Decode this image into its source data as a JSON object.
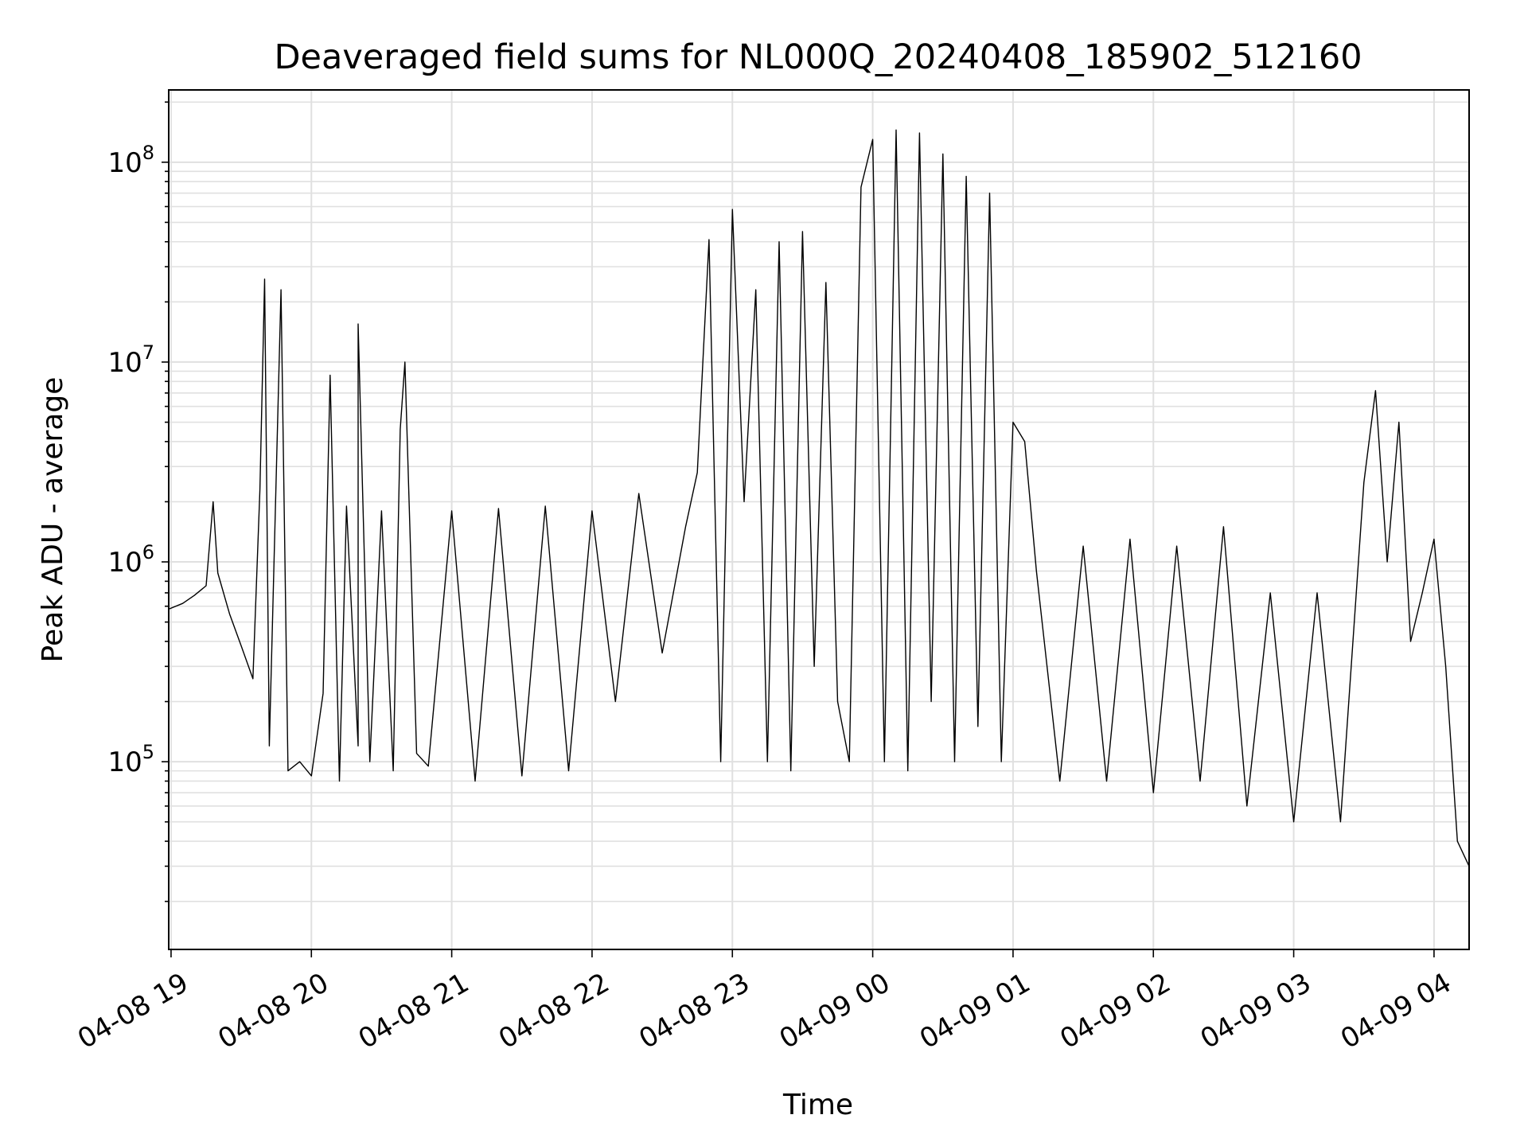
{
  "chart_data": {
    "type": "line",
    "title": "Deaveraged field sums for NL000Q_20240408_185902_512160",
    "xlabel": "Time",
    "ylabel": "Peak ADU - average",
    "yscale": "log",
    "ylim": [
      11500,
      230000000
    ],
    "xlim": [
      "2024-04-08 18:59",
      "2024-04-09 04:15"
    ],
    "grid": true,
    "line_color": "#000000",
    "grid_color": "#e0e0e0",
    "x_ticks": [
      {
        "t": "2024-04-08 19:00",
        "label": "04-08 19"
      },
      {
        "t": "2024-04-08 20:00",
        "label": "04-08 20"
      },
      {
        "t": "2024-04-08 21:00",
        "label": "04-08 21"
      },
      {
        "t": "2024-04-08 22:00",
        "label": "04-08 22"
      },
      {
        "t": "2024-04-08 23:00",
        "label": "04-08 23"
      },
      {
        "t": "2024-04-09 00:00",
        "label": "04-09 00"
      },
      {
        "t": "2024-04-09 01:00",
        "label": "04-09 01"
      },
      {
        "t": "2024-04-09 02:00",
        "label": "04-09 02"
      },
      {
        "t": "2024-04-09 03:00",
        "label": "04-09 03"
      },
      {
        "t": "2024-04-09 04:00",
        "label": "04-09 04"
      }
    ],
    "y_ticks": [
      {
        "value": 100000,
        "base": "10",
        "exp": "5"
      },
      {
        "value": 1000000,
        "base": "10",
        "exp": "6"
      },
      {
        "value": 10000000,
        "base": "10",
        "exp": "7"
      },
      {
        "value": 100000000,
        "base": "10",
        "exp": "8"
      }
    ],
    "series": [
      {
        "points": [
          [
            "2024-04-08 18:59",
            580000
          ],
          [
            "2024-04-08 19:05",
            620000
          ],
          [
            "2024-04-08 19:10",
            680000
          ],
          [
            "2024-04-08 19:15",
            760000
          ],
          [
            "2024-04-08 19:18",
            2000000
          ],
          [
            "2024-04-08 19:20",
            880000
          ],
          [
            "2024-04-08 19:25",
            550000
          ],
          [
            "2024-04-08 19:30",
            380000
          ],
          [
            "2024-04-08 19:35",
            260000
          ],
          [
            "2024-04-08 19:38",
            2300000
          ],
          [
            "2024-04-08 19:40",
            26000000
          ],
          [
            "2024-04-08 19:42",
            120000
          ],
          [
            "2024-04-08 19:47",
            23000000
          ],
          [
            "2024-04-08 19:50",
            90000
          ],
          [
            "2024-04-08 19:55",
            100000
          ],
          [
            "2024-04-08 20:00",
            85000
          ],
          [
            "2024-04-08 20:05",
            220000
          ],
          [
            "2024-04-08 20:08",
            8600000
          ],
          [
            "2024-04-08 20:12",
            80000
          ],
          [
            "2024-04-08 20:15",
            1900000
          ],
          [
            "2024-04-08 20:20",
            120000
          ],
          [
            "2024-04-08 20:20",
            15500000
          ],
          [
            "2024-04-08 20:25",
            100000
          ],
          [
            "2024-04-08 20:30",
            1800000
          ],
          [
            "2024-04-08 20:35",
            90000
          ],
          [
            "2024-04-08 20:38",
            4600000
          ],
          [
            "2024-04-08 20:40",
            10000000
          ],
          [
            "2024-04-08 20:45",
            110000
          ],
          [
            "2024-04-08 20:50",
            95000
          ],
          [
            "2024-04-08 21:00",
            1800000
          ],
          [
            "2024-04-08 21:10",
            80000
          ],
          [
            "2024-04-08 21:20",
            1850000
          ],
          [
            "2024-04-08 21:30",
            85000
          ],
          [
            "2024-04-08 21:40",
            1900000
          ],
          [
            "2024-04-08 21:50",
            90000
          ],
          [
            "2024-04-08 22:00",
            1800000
          ],
          [
            "2024-04-08 22:10",
            200000
          ],
          [
            "2024-04-08 22:20",
            2200000
          ],
          [
            "2024-04-08 22:30",
            350000
          ],
          [
            "2024-04-08 22:40",
            1500000
          ],
          [
            "2024-04-08 22:45",
            2800000
          ],
          [
            "2024-04-08 22:50",
            41000000
          ],
          [
            "2024-04-08 22:55",
            100000
          ],
          [
            "2024-04-08 23:00",
            58000000
          ],
          [
            "2024-04-08 23:05",
            2000000
          ],
          [
            "2024-04-08 23:10",
            23000000
          ],
          [
            "2024-04-08 23:15",
            100000
          ],
          [
            "2024-04-08 23:20",
            40000000
          ],
          [
            "2024-04-08 23:25",
            90000
          ],
          [
            "2024-04-08 23:30",
            45000000
          ],
          [
            "2024-04-08 23:35",
            300000
          ],
          [
            "2024-04-08 23:40",
            25000000
          ],
          [
            "2024-04-08 23:45",
            200000
          ],
          [
            "2024-04-08 23:50",
            100000
          ],
          [
            "2024-04-08 23:55",
            75000000
          ],
          [
            "2024-04-09 00:00",
            130000000
          ],
          [
            "2024-04-09 00:05",
            100000
          ],
          [
            "2024-04-09 00:10",
            145000000
          ],
          [
            "2024-04-09 00:15",
            90000
          ],
          [
            "2024-04-09 00:20",
            140000000
          ],
          [
            "2024-04-09 00:25",
            200000
          ],
          [
            "2024-04-09 00:30",
            110000000
          ],
          [
            "2024-04-09 00:35",
            100000
          ],
          [
            "2024-04-09 00:40",
            85000000
          ],
          [
            "2024-04-09 00:45",
            150000
          ],
          [
            "2024-04-09 00:50",
            70000000
          ],
          [
            "2024-04-09 00:55",
            100000
          ],
          [
            "2024-04-09 01:00",
            5000000
          ],
          [
            "2024-04-09 01:05",
            4000000
          ],
          [
            "2024-04-09 01:10",
            900000
          ],
          [
            "2024-04-09 01:20",
            80000
          ],
          [
            "2024-04-09 01:30",
            1200000
          ],
          [
            "2024-04-09 01:40",
            80000
          ],
          [
            "2024-04-09 01:50",
            1300000
          ],
          [
            "2024-04-09 02:00",
            70000
          ],
          [
            "2024-04-09 02:10",
            1200000
          ],
          [
            "2024-04-09 02:20",
            80000
          ],
          [
            "2024-04-09 02:30",
            1500000
          ],
          [
            "2024-04-09 02:40",
            60000
          ],
          [
            "2024-04-09 02:50",
            700000
          ],
          [
            "2024-04-09 03:00",
            50000
          ],
          [
            "2024-04-09 03:10",
            700000
          ],
          [
            "2024-04-09 03:20",
            50000
          ],
          [
            "2024-04-09 03:30",
            2500000
          ],
          [
            "2024-04-09 03:35",
            7200000
          ],
          [
            "2024-04-09 03:40",
            1000000
          ],
          [
            "2024-04-09 03:45",
            5000000
          ],
          [
            "2024-04-09 03:50",
            400000
          ],
          [
            "2024-04-09 03:55",
            700000
          ],
          [
            "2024-04-09 04:00",
            1300000
          ],
          [
            "2024-04-09 04:05",
            300000
          ],
          [
            "2024-04-09 04:10",
            40000
          ],
          [
            "2024-04-09 04:15",
            30000
          ]
        ]
      }
    ]
  }
}
